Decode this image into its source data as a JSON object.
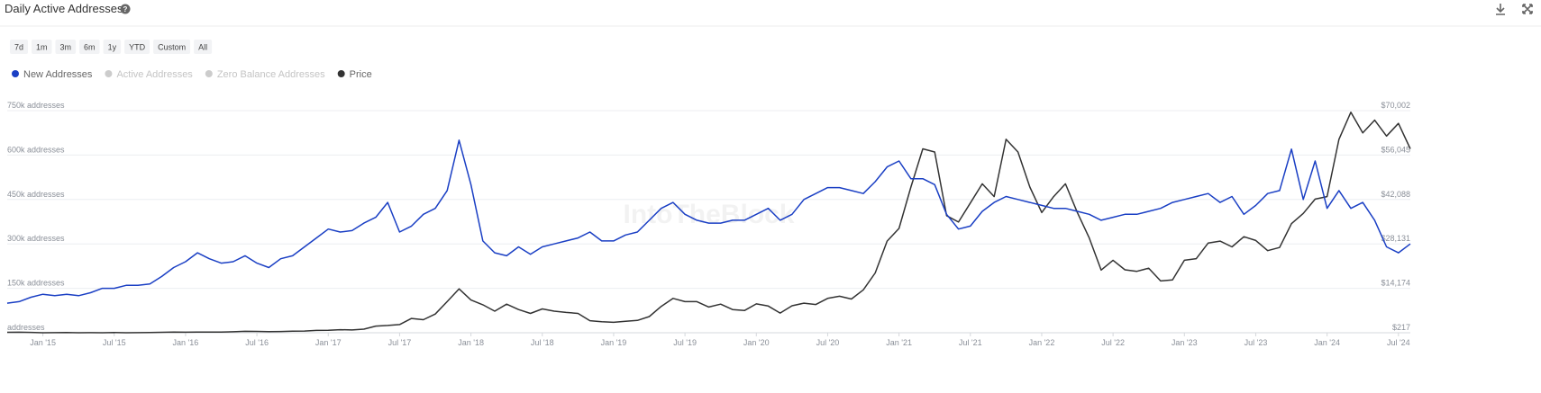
{
  "chart_data": {
    "type": "line",
    "title": "Daily Active Addresses",
    "range_buttons": [
      "7d",
      "1m",
      "3m",
      "6m",
      "1y",
      "YTD",
      "Custom",
      "All"
    ],
    "watermark": "IntoTheBlock",
    "inactive_legend": [
      {
        "name": "Active Addresses",
        "color": "#cccccc"
      },
      {
        "name": "Zero Balance Addresses",
        "color": "#cccccc"
      }
    ],
    "x": [
      "2014-10",
      "2014-11",
      "2014-12",
      "2015-01",
      "2015-02",
      "2015-03",
      "2015-04",
      "2015-05",
      "2015-06",
      "2015-07",
      "2015-08",
      "2015-09",
      "2015-10",
      "2015-11",
      "2015-12",
      "2016-01",
      "2016-02",
      "2016-03",
      "2016-04",
      "2016-05",
      "2016-06",
      "2016-07",
      "2016-08",
      "2016-09",
      "2016-10",
      "2016-11",
      "2016-12",
      "2017-01",
      "2017-02",
      "2017-03",
      "2017-04",
      "2017-05",
      "2017-06",
      "2017-07",
      "2017-08",
      "2017-09",
      "2017-10",
      "2017-11",
      "2017-12",
      "2018-01",
      "2018-02",
      "2018-03",
      "2018-04",
      "2018-05",
      "2018-06",
      "2018-07",
      "2018-08",
      "2018-09",
      "2018-10",
      "2018-11",
      "2018-12",
      "2019-01",
      "2019-02",
      "2019-03",
      "2019-04",
      "2019-05",
      "2019-06",
      "2019-07",
      "2019-08",
      "2019-09",
      "2019-10",
      "2019-11",
      "2019-12",
      "2020-01",
      "2020-02",
      "2020-03",
      "2020-04",
      "2020-05",
      "2020-06",
      "2020-07",
      "2020-08",
      "2020-09",
      "2020-10",
      "2020-11",
      "2020-12",
      "2021-01",
      "2021-02",
      "2021-03",
      "2021-04",
      "2021-05",
      "2021-06",
      "2021-07",
      "2021-08",
      "2021-09",
      "2021-10",
      "2021-11",
      "2021-12",
      "2022-01",
      "2022-02",
      "2022-03",
      "2022-04",
      "2022-05",
      "2022-06",
      "2022-07",
      "2022-08",
      "2022-09",
      "2022-10",
      "2022-11",
      "2022-12",
      "2023-01",
      "2023-02",
      "2023-03",
      "2023-04",
      "2023-05",
      "2023-06",
      "2023-07",
      "2023-08",
      "2023-09",
      "2023-10",
      "2023-11",
      "2023-12",
      "2024-01",
      "2024-02",
      "2024-03",
      "2024-04",
      "2024-05",
      "2024-06",
      "2024-07",
      "2024-08"
    ],
    "series": [
      {
        "name": "New Addresses",
        "color": "#1a3fc4",
        "values": [
          100000,
          105000,
          120000,
          130000,
          125000,
          130000,
          125000,
          135000,
          150000,
          150000,
          160000,
          160000,
          165000,
          190000,
          220000,
          240000,
          270000,
          250000,
          235000,
          240000,
          260000,
          235000,
          220000,
          250000,
          260000,
          290000,
          320000,
          350000,
          340000,
          345000,
          370000,
          390000,
          440000,
          340000,
          360000,
          400000,
          420000,
          480000,
          650000,
          500000,
          310000,
          270000,
          260000,
          290000,
          265000,
          290000,
          300000,
          310000,
          320000,
          340000,
          310000,
          310000,
          330000,
          340000,
          380000,
          420000,
          440000,
          400000,
          380000,
          370000,
          370000,
          380000,
          380000,
          400000,
          420000,
          380000,
          400000,
          450000,
          470000,
          490000,
          490000,
          480000,
          470000,
          510000,
          560000,
          580000,
          520000,
          520000,
          500000,
          400000,
          350000,
          360000,
          410000,
          440000,
          460000,
          450000,
          440000,
          430000,
          420000,
          420000,
          410000,
          400000,
          380000,
          390000,
          400000,
          400000,
          410000,
          420000,
          440000,
          450000,
          460000,
          470000,
          440000,
          460000,
          400000,
          430000,
          470000,
          480000,
          620000,
          450000,
          580000,
          420000,
          480000,
          420000,
          440000,
          380000,
          290000,
          270000,
          300000
        ]
      },
      {
        "name": "Price",
        "color": "#333333",
        "axis": "y2",
        "values": [
          350,
          380,
          320,
          220,
          250,
          260,
          230,
          240,
          230,
          280,
          230,
          240,
          300,
          360,
          430,
          380,
          420,
          415,
          450,
          530,
          670,
          650,
          575,
          610,
          700,
          740,
          960,
          970,
          1190,
          1080,
          1350,
          2300,
          2500,
          2800,
          4700,
          4300,
          6100,
          10000,
          14000,
          10500,
          9000,
          7000,
          9200,
          7500,
          6300,
          7700,
          7000,
          6600,
          6300,
          4000,
          3700,
          3500,
          3800,
          4100,
          5300,
          8500,
          11000,
          10000,
          10000,
          8300,
          9200,
          7500,
          7200,
          9300,
          8600,
          6400,
          8700,
          9500,
          9100,
          11000,
          11700,
          10800,
          13700,
          19000,
          29000,
          33000,
          46000,
          58000,
          57000,
          37000,
          35000,
          41000,
          47000,
          43000,
          61000,
          57000,
          46000,
          38000,
          43000,
          47000,
          38000,
          30000,
          19900,
          23000,
          20000,
          19500,
          20500,
          16500,
          16800,
          23000,
          23500,
          28400,
          29000,
          27200,
          30400,
          29200,
          26000,
          27000,
          34500,
          37700,
          42200,
          43000,
          61000,
          69500,
          63000,
          67000,
          62000,
          66000,
          58000
        ]
      }
    ],
    "xlim": [
      "2014-10",
      "2024-08"
    ],
    "xticks": [
      {
        "value": "2015-01",
        "label": "Jan '15"
      },
      {
        "value": "2015-07",
        "label": "Jul '15"
      },
      {
        "value": "2016-01",
        "label": "Jan '16"
      },
      {
        "value": "2016-07",
        "label": "Jul '16"
      },
      {
        "value": "2017-01",
        "label": "Jan '17"
      },
      {
        "value": "2017-07",
        "label": "Jul '17"
      },
      {
        "value": "2018-01",
        "label": "Jan '18"
      },
      {
        "value": "2018-07",
        "label": "Jul '18"
      },
      {
        "value": "2019-01",
        "label": "Jan '19"
      },
      {
        "value": "2019-07",
        "label": "Jul '19"
      },
      {
        "value": "2020-01",
        "label": "Jan '20"
      },
      {
        "value": "2020-07",
        "label": "Jul '20"
      },
      {
        "value": "2021-01",
        "label": "Jan '21"
      },
      {
        "value": "2021-07",
        "label": "Jul '21"
      },
      {
        "value": "2022-01",
        "label": "Jan '22"
      },
      {
        "value": "2022-07",
        "label": "Jul '22"
      },
      {
        "value": "2023-01",
        "label": "Jan '23"
      },
      {
        "value": "2023-07",
        "label": "Jul '23"
      },
      {
        "value": "2024-01",
        "label": "Jan '24"
      },
      {
        "value": "2024-07",
        "label": "Jul '24"
      }
    ],
    "ylim": [
      0,
      750000
    ],
    "yticks": [
      {
        "value": 0,
        "label": "addresses"
      },
      {
        "value": 150000,
        "label": "150k addresses"
      },
      {
        "value": 300000,
        "label": "300k addresses"
      },
      {
        "value": 450000,
        "label": "450k addresses"
      },
      {
        "value": 600000,
        "label": "600k addresses"
      },
      {
        "value": 750000,
        "label": "750k addresses"
      }
    ],
    "y2lim": [
      217,
      70002
    ],
    "y2ticks": [
      {
        "value": 217,
        "label": "$217"
      },
      {
        "value": 14174,
        "label": "$14,174"
      },
      {
        "value": 28131,
        "label": "$28,131"
      },
      {
        "value": 42088,
        "label": "$42,088"
      },
      {
        "value": 56045,
        "label": "$56,045"
      },
      {
        "value": 70002,
        "label": "$70,002"
      }
    ],
    "grid": true
  }
}
